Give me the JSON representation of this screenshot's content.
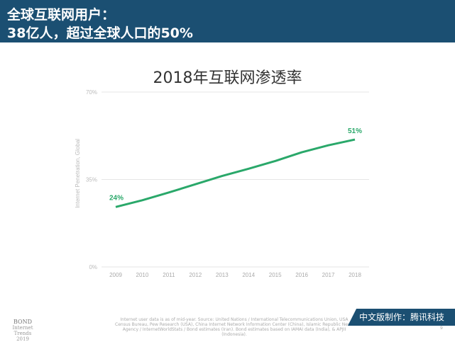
{
  "header": {
    "line1": "全球互联网用户：",
    "line2": "38亿人，超过全球人口的50%"
  },
  "chart_data": {
    "type": "line",
    "title": "2018年互联网渗透率",
    "ylabel": "Internet Penetration, Global",
    "xlabel": "",
    "categories": [
      "2009",
      "2010",
      "2011",
      "2012",
      "2013",
      "2014",
      "2015",
      "2016",
      "2017",
      "2018"
    ],
    "values": [
      24,
      26.7,
      29.8,
      33.1,
      36.4,
      39.3,
      42.4,
      45.9,
      48.7,
      51
    ],
    "ylim": [
      0,
      70
    ],
    "yticks": [
      "0%",
      "35%",
      "70%"
    ],
    "data_labels": {
      "first": "24%",
      "last": "51%"
    },
    "color": "#2aa86a",
    "grid": true
  },
  "footer": {
    "note": "Internet user data is as of mid-year. Source: United Nations / International Telecommunications Union, USA Census Bureau, Pew Research (USA), China Internet Network Information Center (China), Islamic Republic News Agency / InternetWorldStats / Bond estimates (Iran). Bond estimates based on IAMAI data (India), & APJII (Indonesia).",
    "brand_line1": "BOND",
    "brand_line2": "Internet Trends",
    "brand_line3": "2019",
    "badge": "中文版制作：腾讯科技",
    "page": "9"
  }
}
